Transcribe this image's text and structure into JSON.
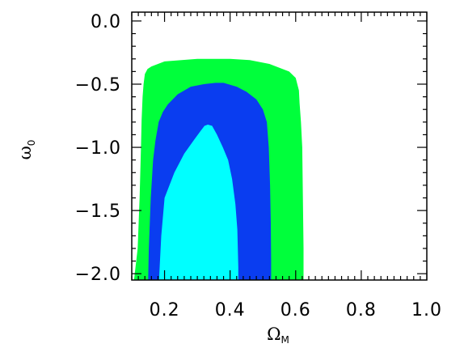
{
  "chart_data": {
    "type": "area",
    "title": "",
    "xlabel": {
      "main": "Ω",
      "sub": "M"
    },
    "ylabel": {
      "main": "ω",
      "sub": "0"
    },
    "xlim": [
      0.1,
      1.0
    ],
    "ylim": [
      -2.05,
      0.07
    ],
    "x_ticks": [
      0.2,
      0.4,
      0.6,
      0.8,
      1.0
    ],
    "x_tick_labels": [
      "0.2",
      "0.4",
      "0.6",
      "0.8",
      "1.0"
    ],
    "y_ticks": [
      0.0,
      -0.5,
      -1.0,
      -1.5,
      -2.0
    ],
    "y_tick_labels": [
      "0.0",
      "−0.5",
      "−1.0",
      "−1.5",
      "−2.0"
    ],
    "grid": false,
    "legend": "none",
    "colors": {
      "outer": "#00ff3b",
      "middle": "#0a3df0",
      "inner": "#00ffff"
    },
    "series": [
      {
        "level": "outer",
        "x": [
          0.107,
          0.118,
          0.124,
          0.128,
          0.13,
          0.133,
          0.136,
          0.14,
          0.148,
          0.16,
          0.2,
          0.3,
          0.4,
          0.46,
          0.52,
          0.58,
          0.6,
          0.61,
          0.612,
          0.616,
          0.62,
          0.622,
          0.624,
          0.624,
          0.107
        ],
        "y": [
          -2.05,
          -1.8,
          -1.4,
          -1.0,
          -0.78,
          -0.6,
          -0.5,
          -0.42,
          -0.38,
          -0.36,
          -0.32,
          -0.3,
          -0.3,
          -0.31,
          -0.34,
          -0.4,
          -0.45,
          -0.55,
          -0.65,
          -0.8,
          -1.0,
          -1.4,
          -1.8,
          -2.05,
          -2.05
        ]
      },
      {
        "level": "middle",
        "x": [
          0.15,
          0.152,
          0.158,
          0.165,
          0.172,
          0.182,
          0.195,
          0.21,
          0.24,
          0.28,
          0.32,
          0.355,
          0.38,
          0.42,
          0.45,
          0.48,
          0.5,
          0.512,
          0.518,
          0.522,
          0.524,
          0.525,
          0.525,
          0.15
        ],
        "y": [
          -2.05,
          -1.8,
          -1.4,
          -1.1,
          -0.95,
          -0.8,
          -0.72,
          -0.66,
          -0.58,
          -0.52,
          -0.5,
          -0.49,
          -0.49,
          -0.52,
          -0.56,
          -0.62,
          -0.7,
          -0.8,
          -1.0,
          -1.3,
          -1.6,
          -1.9,
          -2.05,
          -2.05
        ]
      },
      {
        "level": "inner",
        "x": [
          0.183,
          0.19,
          0.2,
          0.23,
          0.26,
          0.29,
          0.31,
          0.322,
          0.332,
          0.345,
          0.36,
          0.378,
          0.394,
          0.406,
          0.416,
          0.422,
          0.424,
          0.425,
          0.425,
          0.183
        ],
        "y": [
          -2.05,
          -1.7,
          -1.4,
          -1.2,
          -1.05,
          -0.94,
          -0.87,
          -0.83,
          -0.82,
          -0.83,
          -0.9,
          -1.0,
          -1.1,
          -1.25,
          -1.45,
          -1.65,
          -1.85,
          -1.95,
          -2.05,
          -2.05
        ]
      }
    ]
  }
}
